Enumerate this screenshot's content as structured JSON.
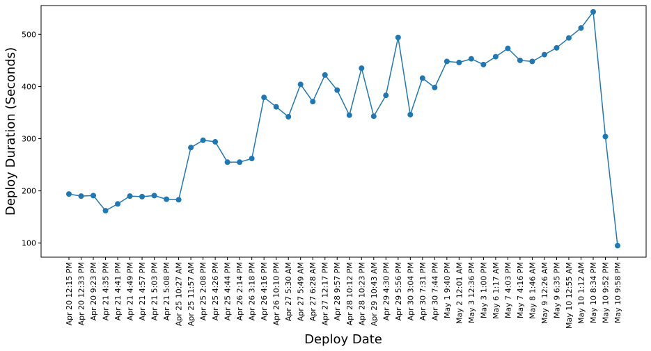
{
  "chart_data": {
    "type": "line",
    "title": "",
    "xlabel": "Deploy Date",
    "ylabel": "Deploy Duration (Seconds)",
    "ylim": [
      73,
      555
    ],
    "yticks": [
      100,
      200,
      300,
      400,
      500
    ],
    "grid": false,
    "color": "#1f77b4",
    "categories": [
      "Apr 20 12:15 PM",
      "Apr 20 12:33 PM",
      "Apr 20 9:23 PM",
      "Apr 21 4:35 PM",
      "Apr 21 4:41 PM",
      "Apr 21 4:49 PM",
      "Apr 21 4:57 PM",
      "Apr 21 5:03 PM",
      "Apr 21 5:08 PM",
      "Apr 25 10:27 AM",
      "Apr 25 11:57 AM",
      "Apr 25 2:08 PM",
      "Apr 25 4:26 PM",
      "Apr 25 4:44 PM",
      "Apr 26 2:14 PM",
      "Apr 26 3:18 PM",
      "Apr 26 4:16 PM",
      "Apr 26 10:10 PM",
      "Apr 27 5:30 AM",
      "Apr 27 5:49 AM",
      "Apr 27 6:28 AM",
      "Apr 27 12:17 PM",
      "Apr 28 9:57 PM",
      "Apr 28 10:12 PM",
      "Apr 28 10:23 PM",
      "Apr 29 10:43 AM",
      "Apr 29 4:30 PM",
      "Apr 29 5:56 PM",
      "Apr 30 3:04 PM",
      "Apr 30 7:31 PM",
      "Apr 30 7:44 PM",
      "May 1 9:40 PM",
      "May 2 12:01 AM",
      "May 3 12:36 PM",
      "May 3 1:00 PM",
      "May 6 1:17 AM",
      "May 7 4:03 PM",
      "May 7 4:16 PM",
      "May 8 1:46 AM",
      "May 9 12:26 AM",
      "May 9 6:35 PM",
      "May 10 12:55 AM",
      "May 10 1:12 AM",
      "May 10 8:34 PM",
      "May 10 9:52 PM",
      "May 10 9:58 PM"
    ],
    "series": [
      {
        "values": [
          194,
          190,
          191,
          162,
          175,
          190,
          189,
          191,
          184,
          183,
          283,
          297,
          294,
          255,
          255,
          262,
          379,
          361,
          342,
          404,
          371,
          422,
          393,
          345,
          435,
          343,
          383,
          494,
          346,
          416,
          398,
          448,
          446,
          453,
          442,
          457,
          473,
          450,
          448,
          461,
          474,
          493,
          512,
          543,
          304,
          95
        ]
      }
    ]
  }
}
